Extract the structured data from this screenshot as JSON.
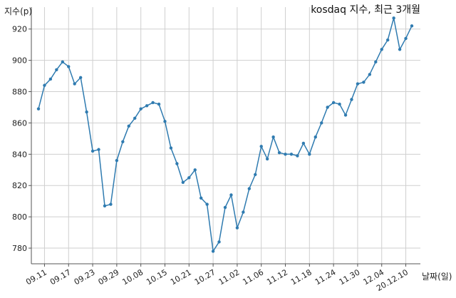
{
  "chart_data": {
    "type": "line",
    "title": "kosdaq 지수, 최근 3개월",
    "ylabel": "지수(p)",
    "xlabel": "날짜(일)",
    "ylim": [
      770,
      934
    ],
    "y_ticks": [
      780,
      800,
      820,
      840,
      860,
      880,
      900,
      920
    ],
    "grid": true,
    "color": "#2f7bb0",
    "x_ticks": [
      {
        "index": 1,
        "label": "09.11"
      },
      {
        "index": 5,
        "label": "09.17"
      },
      {
        "index": 9,
        "label": "09.23"
      },
      {
        "index": 13,
        "label": "09.29"
      },
      {
        "index": 17,
        "label": "10.08"
      },
      {
        "index": 21,
        "label": "10.15"
      },
      {
        "index": 25,
        "label": "10.21"
      },
      {
        "index": 29,
        "label": "10.27"
      },
      {
        "index": 33,
        "label": "11.02"
      },
      {
        "index": 37,
        "label": "11.06"
      },
      {
        "index": 41,
        "label": "11.12"
      },
      {
        "index": 45,
        "label": "11.18"
      },
      {
        "index": 49,
        "label": "11.24"
      },
      {
        "index": 53,
        "label": "11.30"
      },
      {
        "index": 57,
        "label": "12.04"
      },
      {
        "index": 61,
        "label": "20.12.10"
      }
    ],
    "values": [
      869,
      884,
      888,
      894,
      899,
      896,
      885,
      889,
      867,
      842,
      843,
      807,
      808,
      836,
      848,
      858,
      863,
      869,
      871,
      873,
      872,
      861,
      844,
      834,
      822,
      825,
      830,
      812,
      808,
      778,
      784,
      806,
      814,
      793,
      803,
      818,
      827,
      845,
      837,
      851,
      841,
      840,
      840,
      839,
      847,
      840,
      851,
      860,
      870,
      873,
      872,
      865,
      875,
      885,
      886,
      891,
      899,
      907,
      913,
      927,
      907,
      914,
      922
    ]
  }
}
